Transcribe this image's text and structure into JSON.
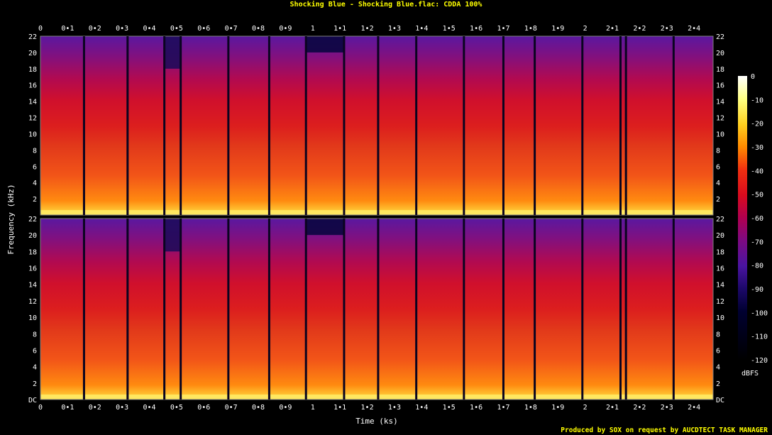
{
  "chart_data": {
    "type": "heatmap",
    "title": "Shocking Blue - Shocking Blue.flac: CDDA 100%",
    "xlabel": "Time (ks)",
    "ylabel": "Frequency (kHz)",
    "xlim": [
      0,
      2.47
    ],
    "x_ticks": [
      "0",
      "0•1",
      "0•2",
      "0•3",
      "0•4",
      "0•5",
      "0•6",
      "0•7",
      "0•8",
      "0•9",
      "1",
      "1•1",
      "1•2",
      "1•3",
      "1•4",
      "1•5",
      "1•6",
      "1•7",
      "1•8",
      "1•9",
      "2",
      "2•1",
      "2•2",
      "2•3",
      "2•4"
    ],
    "x_tick_values": [
      0,
      0.1,
      0.2,
      0.3,
      0.4,
      0.5,
      0.6,
      0.7,
      0.8,
      0.9,
      1.0,
      1.1,
      1.2,
      1.3,
      1.4,
      1.5,
      1.6,
      1.7,
      1.8,
      1.9,
      2.0,
      2.1,
      2.2,
      2.3,
      2.4
    ],
    "ylim": [
      0,
      22
    ],
    "y_ticks": [
      "DC",
      "2",
      "4",
      "6",
      "8",
      "10",
      "12",
      "14",
      "16",
      "18",
      "20",
      "22"
    ],
    "y_tick_values": [
      0,
      2,
      4,
      6,
      8,
      10,
      12,
      14,
      16,
      18,
      20,
      22
    ],
    "channels": 2,
    "track_boundaries_ks": [
      0.16,
      0.32,
      0.455,
      0.515,
      0.69,
      0.84,
      0.975,
      1.115,
      1.24,
      1.38,
      1.555,
      1.7,
      1.815,
      1.99,
      2.13,
      2.15,
      2.325
    ],
    "colorbar": {
      "label": "dBFS",
      "range": [
        -120,
        0
      ],
      "ticks": [
        "0",
        "-10",
        "-20",
        "-30",
        "-40",
        "-50",
        "-60",
        "-70",
        "-80",
        "-90",
        "-100",
        "-110",
        "-120"
      ],
      "tick_values": [
        0,
        -10,
        -20,
        -30,
        -40,
        -50,
        -60,
        -70,
        -80,
        -90,
        -100,
        -110,
        -120
      ],
      "colors": [
        "#ffffff",
        "#ffff80",
        "#ffd020",
        "#ff8a00",
        "#f03010",
        "#d80b1e",
        "#b00050",
        "#7d0a82",
        "#4a14a0",
        "#1c0868",
        "#000030",
        "#000000"
      ]
    },
    "footer": "Produced by SOX on request by AUCDTECT TASK MANAGER",
    "colors": {
      "title": "#ffff00",
      "axis_text": "#ffffff",
      "footer": "#ffff00",
      "frame": "#808080"
    }
  }
}
